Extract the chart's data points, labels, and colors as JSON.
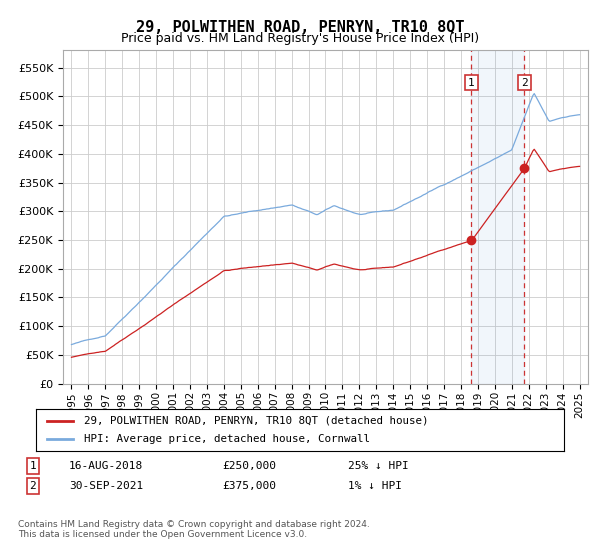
{
  "title": "29, POLWITHEN ROAD, PENRYN, TR10 8QT",
  "subtitle": "Price paid vs. HM Land Registry's House Price Index (HPI)",
  "hpi_label": "HPI: Average price, detached house, Cornwall",
  "price_label": "29, POLWITHEN ROAD, PENRYN, TR10 8QT (detached house)",
  "legend_text": "Contains HM Land Registry data © Crown copyright and database right 2024.\nThis data is licensed under the Open Government Licence v3.0.",
  "sale1_date": "16-AUG-2018",
  "sale1_price": 250000,
  "sale1_note": "25% ↓ HPI",
  "sale2_date": "30-SEP-2021",
  "sale2_price": 375000,
  "sale2_note": "1% ↓ HPI",
  "hpi_color": "#7aaadd",
  "price_color": "#cc2222",
  "marker_color": "#cc2222",
  "vline_color": "#cc3333",
  "background_color": "#ffffff",
  "grid_color": "#cccccc",
  "ylim": [
    0,
    580000
  ],
  "yticks": [
    0,
    50000,
    100000,
    150000,
    200000,
    250000,
    300000,
    350000,
    400000,
    450000,
    500000,
    550000
  ],
  "sale1_x": 2018.62,
  "sale2_x": 2021.75,
  "xlim_start": 1994.5,
  "xlim_end": 2025.5
}
